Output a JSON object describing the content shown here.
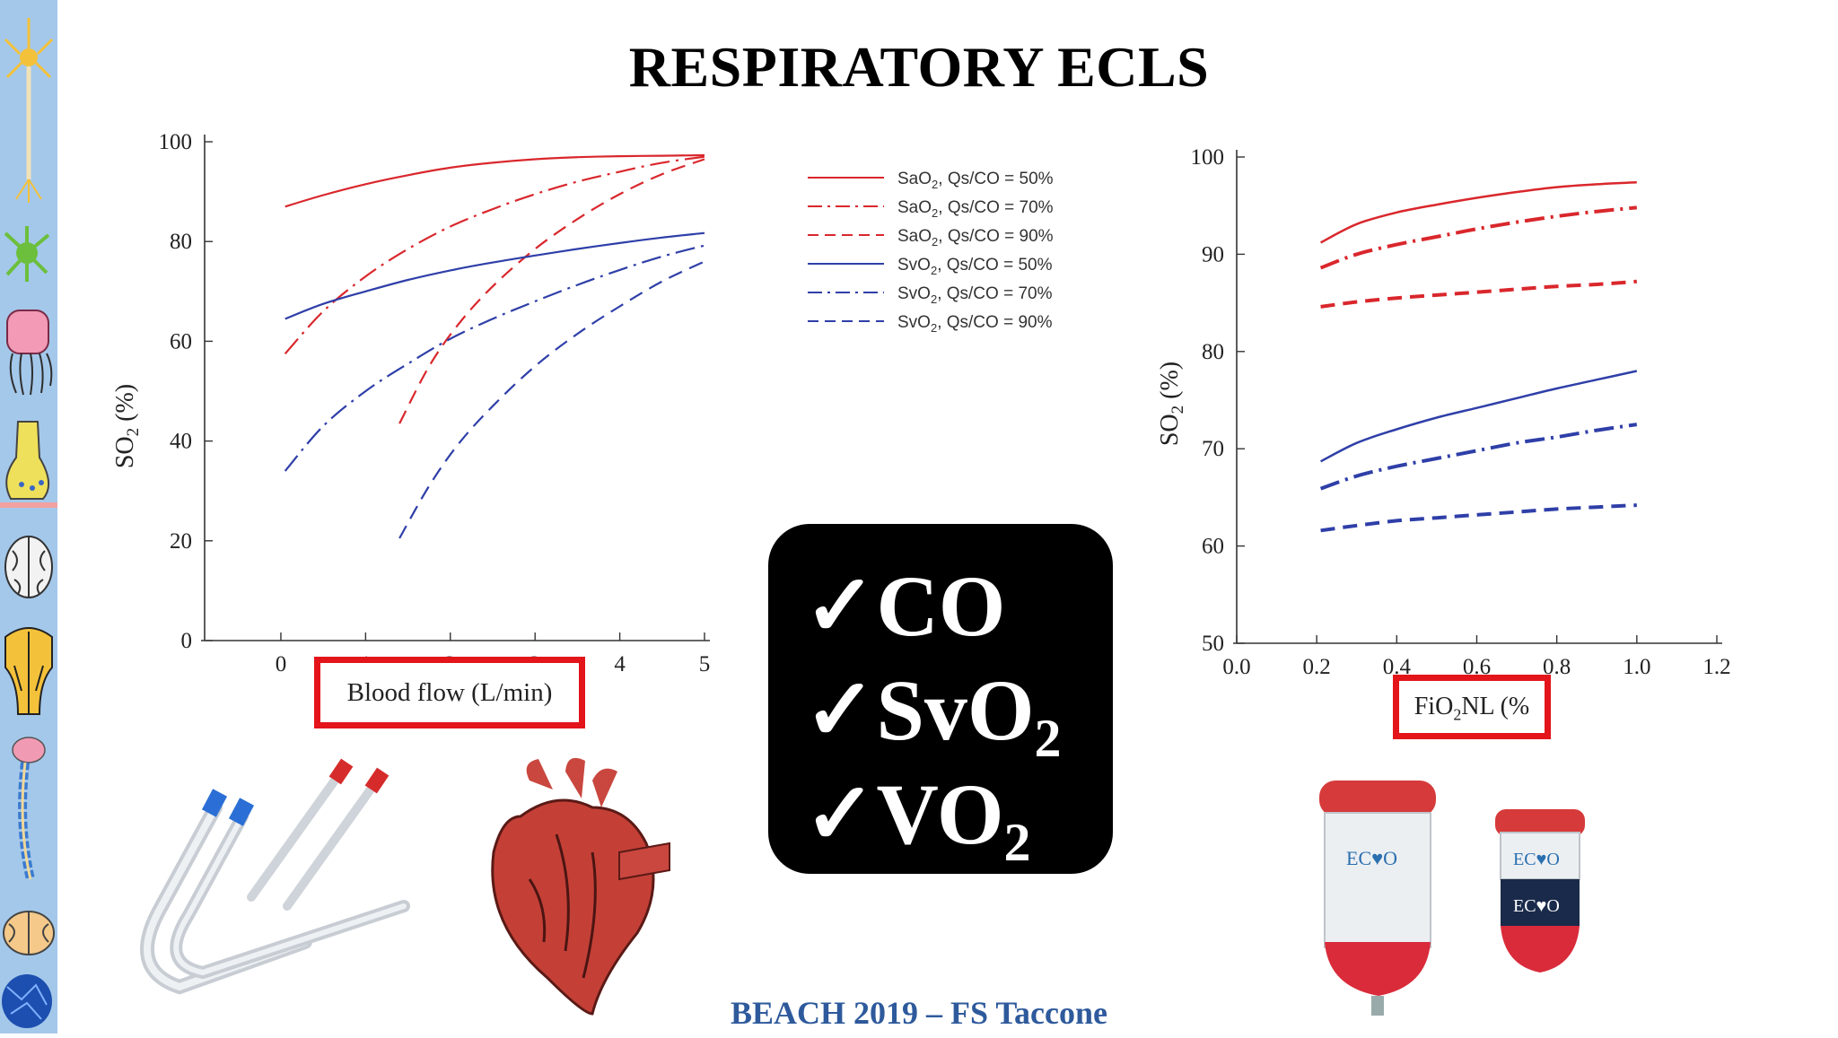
{
  "slide": {
    "title": "RESPIRATORY ECLS",
    "footer": "BEACH 2019 – FS Taccone",
    "checklist": [
      {
        "check": "✓",
        "text": "CO",
        "sub": ""
      },
      {
        "check": "✓",
        "text": "SvO",
        "sub": "2"
      },
      {
        "check": "✓",
        "text": "VO",
        "sub": "2"
      }
    ],
    "accent_red": "#e3151b",
    "footer_color": "#2e5a9c",
    "sidebar_color": "#a4c8ea",
    "sidebar_icons": [
      "neuron-icon",
      "astrocyte-icon",
      "microglia-icon",
      "synapse-icon",
      "brain-top-icon",
      "brainstem-icon",
      "spinal-cord-icon",
      "cerebellum-icon",
      "neural-network-icon"
    ],
    "images": [
      "ecmo-cannulas-image",
      "heart-image",
      "oxygenator-image"
    ]
  },
  "chart_data": [
    {
      "type": "line",
      "xlabel": "Blood flow (L/min)",
      "ylabel_main": "SO",
      "ylabel_sub": "2",
      "ylabel_unit": " (%)",
      "xlim": [
        -0.9,
        5
      ],
      "ylim": [
        0,
        100
      ],
      "xticks": [
        0,
        1,
        2,
        3,
        4,
        5
      ],
      "xtick_labels": [
        "0",
        "1",
        "2",
        "3",
        "4",
        "5"
      ],
      "yticks": [
        0,
        20,
        40,
        60,
        80,
        100
      ],
      "ytick_labels": [
        "0",
        "20",
        "40",
        "60",
        "80",
        "100"
      ],
      "legend_position": "right",
      "series": [
        {
          "label": "SaO",
          "sub": "2",
          "suffix": ", Qs/CO = 50%",
          "color": "#d9272c",
          "style": "solid",
          "x": [
            0.05,
            0.5,
            1,
            1.5,
            2,
            2.5,
            3,
            3.5,
            4,
            4.5,
            5
          ],
          "y": [
            87,
            89.3,
            91.5,
            93.3,
            94.8,
            95.8,
            96.5,
            96.9,
            97.1,
            97.2,
            97.3
          ]
        },
        {
          "label": "SaO",
          "sub": "2",
          "suffix": ", Qs/CO = 70%",
          "color": "#d9272c",
          "style": "dashdot",
          "x": [
            0.05,
            0.5,
            1,
            1.5,
            2,
            2.5,
            3,
            3.5,
            4,
            4.5,
            5
          ],
          "y": [
            57.5,
            66,
            73,
            78.5,
            83,
            86.5,
            89.5,
            92,
            94,
            95.8,
            97
          ]
        },
        {
          "label": "SaO",
          "sub": "2",
          "suffix": ", Qs/CO = 90%",
          "color": "#d9272c",
          "style": "dashed",
          "x": [
            1.4,
            1.75,
            2.1,
            2.5,
            3,
            3.5,
            4,
            4.5,
            5
          ],
          "y": [
            43.5,
            55,
            63.5,
            71,
            78.5,
            84.5,
            89.5,
            93.5,
            96.5
          ]
        },
        {
          "label": "SvO",
          "sub": "2",
          "suffix": ", Qs/CO = 50%",
          "color": "#2f3fa8",
          "style": "solid",
          "x": [
            0.05,
            0.5,
            1,
            1.5,
            2,
            2.5,
            3,
            3.5,
            4,
            4.5,
            5
          ],
          "y": [
            64.5,
            67.5,
            70,
            72.3,
            74.2,
            75.8,
            77.2,
            78.5,
            79.7,
            80.8,
            81.7
          ]
        },
        {
          "label": "SvO",
          "sub": "2",
          "suffix": ", Qs/CO = 70%",
          "color": "#2f3fa8",
          "style": "dashdot",
          "x": [
            0.05,
            0.5,
            1,
            1.5,
            2,
            2.5,
            3,
            3.5,
            4,
            4.5,
            5
          ],
          "y": [
            34,
            43,
            50,
            55.5,
            60.5,
            64.5,
            68,
            71.3,
            74.3,
            77,
            79.2
          ]
        },
        {
          "label": "SvO",
          "sub": "2",
          "suffix": ", Qs/CO = 90%",
          "color": "#2f3fa8",
          "style": "dashed",
          "x": [
            1.4,
            1.75,
            2.1,
            2.5,
            3,
            3.5,
            4,
            4.5,
            5
          ],
          "y": [
            20.5,
            31,
            39.5,
            47,
            55,
            61.5,
            67,
            72,
            76
          ]
        }
      ]
    },
    {
      "type": "line",
      "xlabel": "FiO",
      "xlabel_sub": "2",
      "xlabel_suffix": "NL (%",
      "ylabel_main": "SO",
      "ylabel_sub": "2",
      "ylabel_unit": " (%)",
      "xlim": [
        0,
        1.2
      ],
      "ylim": [
        50,
        100
      ],
      "xticks": [
        0,
        0.2,
        0.4,
        0.6,
        0.8,
        1.0,
        1.2
      ],
      "xtick_labels": [
        "0.0",
        "0.2",
        "0.4",
        "0.6",
        "0.8",
        "1.0",
        "1.2"
      ],
      "yticks": [
        50,
        60,
        70,
        80,
        90,
        100
      ],
      "ytick_labels": [
        "50",
        "60",
        "70",
        "80",
        "90",
        "100"
      ],
      "series": [
        {
          "color": "#d9272c",
          "style": "solid",
          "width": 2.5,
          "x": [
            0.21,
            0.3,
            0.4,
            0.5,
            0.6,
            0.7,
            0.8,
            0.9,
            1.0
          ],
          "y": [
            91.2,
            93.1,
            94.3,
            95.1,
            95.8,
            96.4,
            96.9,
            97.2,
            97.4
          ]
        },
        {
          "color": "#d9272c",
          "style": "dashdot",
          "width": 4,
          "x": [
            0.21,
            0.3,
            0.4,
            0.5,
            0.6,
            0.7,
            0.8,
            0.9,
            1.0
          ],
          "y": [
            88.6,
            90,
            91,
            91.8,
            92.6,
            93.3,
            93.9,
            94.4,
            94.8
          ]
        },
        {
          "color": "#d9272c",
          "style": "dashed",
          "width": 4,
          "x": [
            0.21,
            0.3,
            0.4,
            0.5,
            0.6,
            0.7,
            0.8,
            0.9,
            1.0
          ],
          "y": [
            84.6,
            85.1,
            85.5,
            85.8,
            86.1,
            86.4,
            86.7,
            86.9,
            87.2
          ]
        },
        {
          "color": "#2f3fa8",
          "style": "solid",
          "width": 2.5,
          "x": [
            0.21,
            0.3,
            0.4,
            0.5,
            0.6,
            0.7,
            0.8,
            0.9,
            1.0
          ],
          "y": [
            68.7,
            70.6,
            72,
            73.2,
            74.2,
            75.2,
            76.2,
            77.1,
            78
          ]
        },
        {
          "color": "#2f3fa8",
          "style": "dashdot",
          "width": 4,
          "x": [
            0.21,
            0.3,
            0.4,
            0.5,
            0.6,
            0.7,
            0.8,
            0.9,
            1.0
          ],
          "y": [
            65.9,
            67.2,
            68.2,
            69,
            69.8,
            70.6,
            71.2,
            71.9,
            72.5
          ]
        },
        {
          "color": "#2f3fa8",
          "style": "dashed",
          "width": 4,
          "x": [
            0.21,
            0.3,
            0.4,
            0.5,
            0.6,
            0.7,
            0.8,
            0.9,
            1.0
          ],
          "y": [
            61.6,
            62.1,
            62.6,
            62.9,
            63.2,
            63.5,
            63.8,
            64,
            64.2
          ]
        }
      ]
    }
  ]
}
